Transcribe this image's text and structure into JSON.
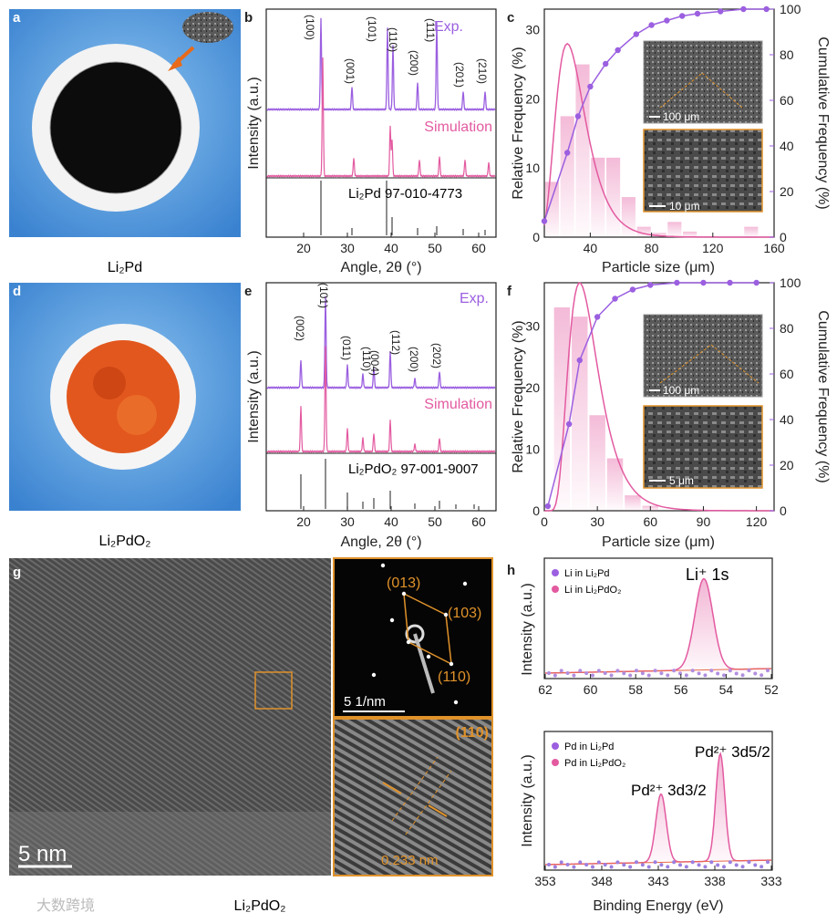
{
  "panels": {
    "a": {
      "letter": "a",
      "caption": "Li₂Pd"
    },
    "b": {
      "letter": "b",
      "exp_label": "Exp.",
      "sim_label": "Simulation",
      "ref_label": "Li₂Pd 97-010-4773",
      "xlabel": "Angle, 2θ (°)",
      "ylabel": "Intensity (a.u.)",
      "xticks": [
        "20",
        "30",
        "40",
        "50",
        "60"
      ],
      "hkl": [
        "(100)",
        "(001)",
        "(101)",
        "(110)",
        "(200)",
        "(111)",
        "(201)",
        "(210)"
      ]
    },
    "c": {
      "letter": "c",
      "xlabel": "Particle size (μm)",
      "ylabel_left": "Relative Frequency (%)",
      "ylabel_right": "Cumulative Frequency (%)",
      "xticks": [
        "40",
        "80",
        "120",
        "160"
      ],
      "yticks_left": [
        "0",
        "10",
        "20",
        "30"
      ],
      "yticks_right": [
        "0",
        "20",
        "40",
        "60",
        "80",
        "100"
      ],
      "scalebar_top": "100 μm",
      "scalebar_bottom": "10 μm"
    },
    "d": {
      "letter": "d",
      "caption": "Li₂PdO₂"
    },
    "e": {
      "letter": "e",
      "exp_label": "Exp.",
      "sim_label": "Simulation",
      "ref_label": "Li₂PdO₂ 97-001-9007",
      "xlabel": "Angle, 2θ (°)",
      "ylabel": "Intensity (a.u.)",
      "xticks": [
        "20",
        "30",
        "40",
        "50",
        "60"
      ],
      "hkl": [
        "(002)",
        "(101)",
        "(011)",
        "(110)",
        "(004)",
        "(112)",
        "(200)",
        "(202)"
      ]
    },
    "f": {
      "letter": "f",
      "xlabel": "Particle size (μm)",
      "ylabel_left": "Relative Frequency (%)",
      "ylabel_right": "Cumulative Frequency (%)",
      "xticks": [
        "0",
        "30",
        "60",
        "90",
        "120"
      ],
      "yticks_left": [
        "0",
        "10",
        "20",
        "30"
      ],
      "yticks_right": [
        "0",
        "20",
        "40",
        "60",
        "80",
        "100"
      ],
      "scalebar_top": "100 μm",
      "scalebar_bottom": "5 μm"
    },
    "g": {
      "letter": "g",
      "caption": "Li₂PdO₂",
      "scalebar_main": "5 nm",
      "scalebar_saed": "5 1/nm",
      "saed_labels": [
        "(013)",
        "(103)",
        "(110)"
      ],
      "hr_label": "(110)",
      "d_spacing": "0.233 nm"
    },
    "h": {
      "letter": "h",
      "top": {
        "legend": [
          "Li in Li₂Pd",
          "Li in Li₂PdO₂"
        ],
        "peak_label": "Li⁺ 1s",
        "xticks": [
          "62",
          "60",
          "58",
          "56",
          "54",
          "52"
        ],
        "ylabel": "Intensity (a.u.)"
      },
      "bottom": {
        "legend": [
          "Pd in Li₂Pd",
          "Pd in Li₂PdO₂"
        ],
        "peak1": "Pd²⁺ 3d3/2",
        "peak2": "Pd²⁺ 3d5/2",
        "xticks": [
          "353",
          "348",
          "343",
          "338",
          "333"
        ],
        "ylabel": "Intensity (a.u.)",
        "xlabel": "Binding Energy (eV)"
      }
    }
  },
  "watermark": "大数跨境",
  "colors": {
    "purple": "#9b5fe0",
    "pink": "#e35aa0",
    "pink_light": "#f4c2dc",
    "orange": "#e0922a",
    "blue_bg": "#4c94dc"
  },
  "chart_data": [
    {
      "type": "bar",
      "panel": "c",
      "title": "",
      "x": [
        15,
        25,
        35,
        45,
        55,
        65,
        75,
        85,
        95,
        105,
        145
      ],
      "values": [
        8,
        17.5,
        25,
        11.5,
        11.5,
        5.8,
        1.5,
        0.6,
        2.2,
        0.8,
        1.5
      ],
      "cumulative": [
        7,
        37,
        53,
        66,
        76,
        82,
        89,
        93,
        95,
        97,
        98,
        99,
        100,
        100
      ],
      "cumulative_x": [
        10,
        25,
        32,
        40,
        50,
        58,
        70,
        80,
        90,
        100,
        110,
        125,
        140,
        155
      ],
      "xlim": [
        10,
        160
      ],
      "ylim_left": [
        0,
        33
      ],
      "ylim_right": [
        0,
        100
      ]
    },
    {
      "type": "bar",
      "panel": "f",
      "title": "",
      "x": [
        10,
        20,
        30,
        40,
        50,
        60
      ],
      "values": [
        33,
        31.5,
        15.5,
        8.5,
        2.5,
        0.8
      ],
      "cumulative_x": [
        2,
        14,
        20,
        30,
        40,
        50,
        60,
        75,
        90,
        105,
        120
      ],
      "cumulative": [
        2,
        38,
        66,
        85,
        93,
        97,
        99,
        100,
        100,
        100,
        100
      ],
      "xlim": [
        0,
        130
      ],
      "ylim_left": [
        0,
        37
      ],
      "ylim_right": [
        0,
        100
      ]
    }
  ]
}
